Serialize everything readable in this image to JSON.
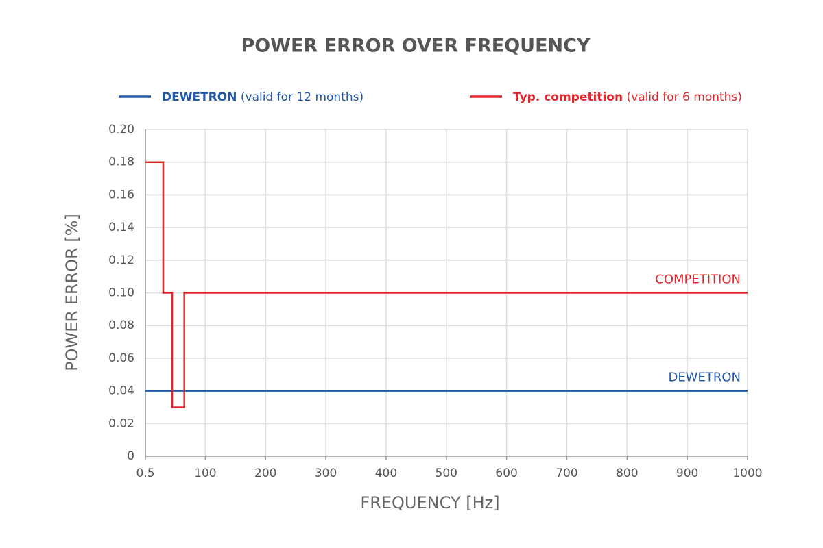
{
  "chart_data": {
    "type": "line",
    "title": "POWER ERROR OVER FREQUENCY",
    "x_label": "FREQUENCY [Hz]",
    "y_label": "POWER ERROR [%]",
    "xlim": [
      0.5,
      1000
    ],
    "ylim": [
      0,
      0.2
    ],
    "xticks": [
      0.5,
      100,
      200,
      300,
      400,
      500,
      600,
      700,
      800,
      900,
      1000
    ],
    "yticks": [
      0,
      0.02,
      0.04,
      0.06,
      0.08,
      {
        "value": 0.1,
        "label": "0.10"
      },
      0.12,
      0.14,
      0.16,
      0.18,
      {
        "value": 0.2,
        "label": "0.20"
      }
    ],
    "grid": true,
    "series": [
      {
        "name": "DEWETRON",
        "legend_note": "(valid for 12 months)",
        "annotation": "DEWETRON",
        "color": "#1f57a8",
        "x": [
          0.5,
          1000
        ],
        "y": [
          0.04,
          0.04
        ]
      },
      {
        "name": "Typ. competition",
        "legend_note": "(valid for 6 months)",
        "annotation": "COMPETITION",
        "color": "#e0262b",
        "x": [
          0.5,
          30,
          30,
          45,
          45,
          65,
          65,
          1000
        ],
        "y": [
          0.18,
          0.18,
          0.1,
          0.1,
          0.03,
          0.03,
          0.1,
          0.1
        ]
      }
    ]
  }
}
